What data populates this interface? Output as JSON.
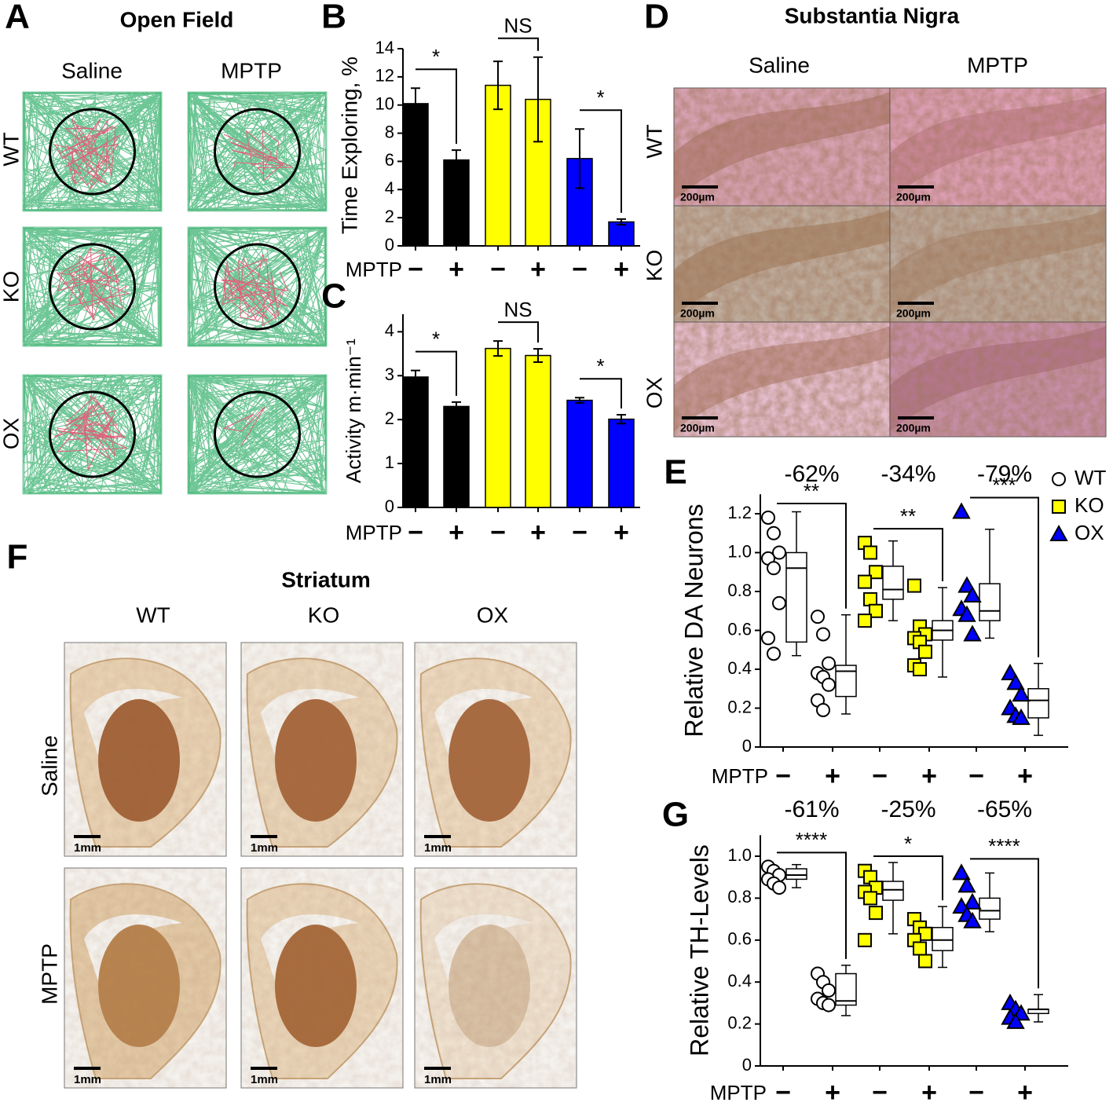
{
  "figure_panels": {
    "open_field": {
      "label": "A",
      "title": "Open Field",
      "columns": [
        "Saline",
        "MPTP"
      ],
      "rows": [
        "WT",
        "KO",
        "OX"
      ]
    },
    "substantia_nigra": {
      "label": "D",
      "title": "Substantia Nigra",
      "columns": [
        "Saline",
        "MPTP"
      ],
      "rows": [
        "WT",
        "KO",
        "OX"
      ],
      "scale_bar": "200µm"
    },
    "striatum": {
      "label": "F",
      "title": "Striatum",
      "columns": [
        "WT",
        "KO",
        "OX"
      ],
      "rows": [
        "Saline",
        "MPTP"
      ],
      "scale_bar": "1mm"
    }
  },
  "chart_data": [
    {
      "type": "bar",
      "panel_label": "B",
      "ylabel": "Time Exploring, %",
      "xlabel": "MPTP",
      "categories": [
        "−",
        "+",
        "−",
        "+",
        "−",
        "+"
      ],
      "values": [
        10.1,
        6.1,
        11.4,
        10.4,
        6.2,
        1.7
      ],
      "errors": [
        1.1,
        0.7,
        1.7,
        3.0,
        2.1,
        0.2
      ],
      "colors": [
        "#000000",
        "#000000",
        "#ffff00",
        "#ffff00",
        "#0000ff",
        "#0000ff"
      ],
      "ylim": [
        0,
        14
      ],
      "yticks": [
        0,
        2,
        4,
        6,
        8,
        10,
        12,
        14
      ],
      "significance": [
        "*",
        "NS",
        "*"
      ]
    },
    {
      "type": "bar",
      "panel_label": "C",
      "ylabel": "Activity m·min⁻¹",
      "xlabel": "MPTP",
      "categories": [
        "−",
        "+",
        "−",
        "+",
        "−",
        "+"
      ],
      "values": [
        2.97,
        2.3,
        3.62,
        3.46,
        2.44,
        2.01
      ],
      "errors": [
        0.15,
        0.1,
        0.17,
        0.15,
        0.06,
        0.1
      ],
      "colors": [
        "#000000",
        "#000000",
        "#ffff00",
        "#ffff00",
        "#0000ff",
        "#0000ff"
      ],
      "ylim": [
        0,
        4.4
      ],
      "yticks": [
        0,
        1,
        2,
        3,
        4
      ],
      "significance": [
        "*",
        "NS",
        "*"
      ]
    },
    {
      "type": "box",
      "panel_label": "E",
      "ylabel": "Relative DA Neurons",
      "xlabel": "MPTP",
      "categories": [
        "−",
        "+",
        "−",
        "+",
        "−",
        "+"
      ],
      "changes": [
        "-62%",
        "-34%",
        "-79%"
      ],
      "significance": [
        "**",
        "**",
        "***"
      ],
      "legend": "top-right",
      "ylim": [
        0,
        1.3
      ],
      "yticks": [
        0,
        0.2,
        0.4,
        0.6,
        0.8,
        {
          "value": 1,
          "label": "1.0"
        },
        1.2
      ],
      "series": [
        {
          "name": "WT",
          "color": "#ffffff",
          "marker": "circle",
          "boxes": [
            {
              "min": 0.47,
              "q1": 0.54,
              "median": 0.92,
              "q3": 1.0,
              "max": 1.21
            },
            {
              "min": 0.17,
              "q1": 0.26,
              "median": 0.39,
              "q3": 0.42,
              "max": 0.68
            }
          ],
          "points": [
            [
              1.18,
              1.1,
              1.0,
              0.97,
              0.92,
              0.74,
              0.56,
              0.48
            ],
            [
              0.67,
              0.58,
              0.43,
              0.38,
              0.36,
              0.32,
              0.24,
              0.19
            ]
          ]
        },
        {
          "name": "KO",
          "color": "#ffff00",
          "marker": "square",
          "boxes": [
            {
              "min": 0.65,
              "q1": 0.76,
              "median": 0.81,
              "q3": 0.93,
              "max": 1.06
            },
            {
              "min": 0.36,
              "q1": 0.55,
              "median": 0.6,
              "q3": 0.65,
              "max": 0.82
            }
          ],
          "points": [
            [
              1.05,
              1.0,
              0.9,
              0.85,
              0.76,
              0.7,
              0.65
            ],
            [
              0.83,
              0.62,
              0.58,
              0.56,
              0.54,
              0.49,
              0.42,
              0.4
            ]
          ]
        },
        {
          "name": "OX",
          "color": "#0000ff",
          "marker": "triangle",
          "boxes": [
            {
              "min": 0.56,
              "q1": 0.65,
              "median": 0.7,
              "q3": 0.84,
              "max": 1.12
            },
            {
              "min": 0.06,
              "q1": 0.15,
              "median": 0.24,
              "q3": 0.3,
              "max": 0.43
            }
          ],
          "points": [
            [
              1.21,
              0.83,
              0.78,
              0.71,
              0.68,
              0.58
            ],
            [
              0.38,
              0.33,
              0.27,
              0.2,
              0.16,
              0.15
            ]
          ]
        }
      ]
    },
    {
      "type": "box",
      "panel_label": "G",
      "ylabel": "Relative TH-Levels",
      "xlabel": "MPTP",
      "categories": [
        "−",
        "+",
        "−",
        "+",
        "−",
        "+"
      ],
      "changes": [
        "-61%",
        "-25%",
        "-65%"
      ],
      "significance": [
        "****",
        "*",
        "****"
      ],
      "ylim": [
        0,
        1.1
      ],
      "yticks": [
        0,
        0.2,
        0.4,
        0.6,
        0.8,
        {
          "value": 1,
          "label": "1.0"
        }
      ],
      "series": [
        {
          "color": "#ffffff",
          "marker": "circle",
          "boxes": [
            {
              "min": 0.85,
              "q1": 0.89,
              "median": 0.91,
              "q3": 0.94,
              "max": 0.96
            },
            {
              "min": 0.24,
              "q1": 0.29,
              "median": 0.31,
              "q3": 0.44,
              "max": 0.48
            }
          ],
          "points": [
            [
              0.95,
              0.93,
              0.91,
              0.89,
              0.87,
              0.85
            ],
            [
              0.44,
              0.4,
              0.36,
              0.32,
              0.3,
              0.29
            ]
          ]
        },
        {
          "color": "#ffff00",
          "marker": "square",
          "boxes": [
            {
              "min": 0.63,
              "q1": 0.79,
              "median": 0.84,
              "q3": 0.88,
              "max": 0.97
            },
            {
              "min": 0.47,
              "q1": 0.55,
              "median": 0.6,
              "q3": 0.66,
              "max": 0.76
            }
          ],
          "points": [
            [
              0.93,
              0.9,
              0.85,
              0.83,
              0.8,
              0.73,
              0.6
            ],
            [
              0.7,
              0.66,
              0.63,
              0.6,
              0.56,
              0.5
            ]
          ]
        },
        {
          "color": "#0000ff",
          "marker": "triangle",
          "boxes": [
            {
              "min": 0.64,
              "q1": 0.7,
              "median": 0.74,
              "q3": 0.8,
              "max": 0.92
            },
            {
              "min": 0.21,
              "q1": 0.25,
              "median": 0.27,
              "q3": 0.27,
              "max": 0.34
            }
          ],
          "points": [
            [
              0.92,
              0.86,
              0.78,
              0.76,
              0.72,
              0.69
            ],
            [
              0.3,
              0.27,
              0.25,
              0.23,
              0.21
            ]
          ]
        }
      ]
    }
  ]
}
